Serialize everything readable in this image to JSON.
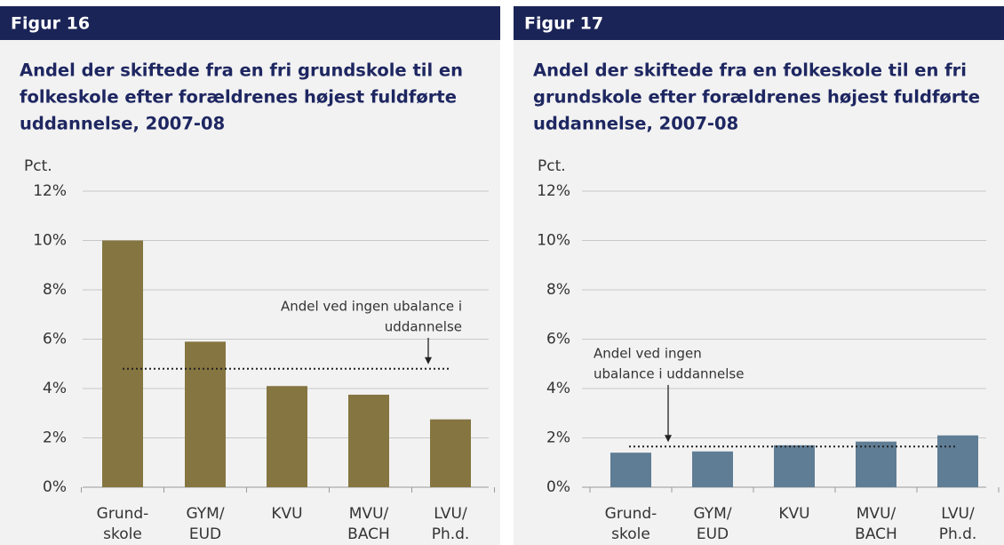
{
  "chart_data": [
    {
      "type": "bar",
      "figure": "Figur 16",
      "title": [
        "Andel der skiftede fra en fri grundskole til en",
        "folkeskole efter forældrenes højest fuldførte",
        "uddannelse, 2007-08"
      ],
      "ylabel": "Pct.",
      "categories": [
        "Grund-\nskole",
        "GYM/\nEUD",
        "KVU",
        "MVU/\nBACH",
        "LVU/\nPh.d."
      ],
      "values": [
        10.0,
        5.9,
        4.1,
        3.75,
        2.75
      ],
      "color": "#857540",
      "ylim": [
        0,
        12
      ],
      "yticks": [
        {
          "value": 0,
          "label": "0%"
        },
        {
          "value": 2,
          "label": "2%"
        },
        {
          "value": 4,
          "label": "4%"
        },
        {
          "value": 6,
          "label": "6%"
        },
        {
          "value": 8,
          "label": "8%"
        },
        {
          "value": 10,
          "label": "10%"
        },
        {
          "value": 12,
          "label": "12%"
        }
      ],
      "grid": true,
      "reference": {
        "value": 4.8,
        "label": [
          "Andel ved ingen ubalance i",
          "uddannelse"
        ]
      }
    },
    {
      "type": "bar",
      "figure": "Figur 17",
      "title": [
        "Andel der skiftede fra en folkeskole til en fri",
        "grundskole efter forældrenes højest fuldførte",
        "uddannelse, 2007-08"
      ],
      "ylabel": "Pct.",
      "categories": [
        "Grund-\nskole",
        "GYM/\nEUD",
        "KVU",
        "MVU/\nBACH",
        "LVU/\nPh.d."
      ],
      "values": [
        1.4,
        1.45,
        1.7,
        1.85,
        2.1
      ],
      "color": "#5f7d95",
      "ylim": [
        0,
        12
      ],
      "yticks": [
        {
          "value": 0,
          "label": "0%"
        },
        {
          "value": 2,
          "label": "2%"
        },
        {
          "value": 4,
          "label": "4%"
        },
        {
          "value": 6,
          "label": "6%"
        },
        {
          "value": 8,
          "label": "8%"
        },
        {
          "value": 10,
          "label": "10%"
        },
        {
          "value": 12,
          "label": "12%"
        }
      ],
      "grid": true,
      "reference": {
        "value": 1.65,
        "label": [
          "Andel ved ingen",
          "ubalance i uddannelse"
        ]
      }
    }
  ]
}
